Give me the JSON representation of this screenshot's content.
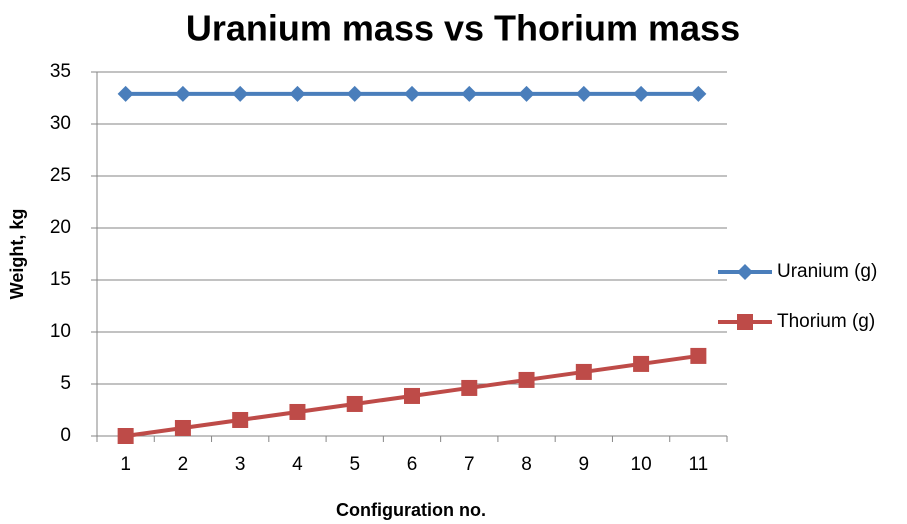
{
  "chart_data": {
    "type": "line",
    "title": "Uranium mass vs Thorium mass",
    "x_label": "Configuration no.",
    "y_label": "Weight, kg",
    "categories": [
      "1",
      "2",
      "3",
      "4",
      "5",
      "6",
      "7",
      "8",
      "9",
      "10",
      "11"
    ],
    "series": [
      {
        "name": "Uranium (g)",
        "color": "#4a7ebb",
        "marker": "diamond",
        "values": [
          32.9,
          32.9,
          32.9,
          32.9,
          32.9,
          32.9,
          32.9,
          32.9,
          32.9,
          32.9,
          32.9
        ]
      },
      {
        "name": "Thorium (g)",
        "color": "#be4b48",
        "marker": "square",
        "values": [
          0,
          0.77,
          1.54,
          2.31,
          3.08,
          3.85,
          4.62,
          5.39,
          6.16,
          6.93,
          7.7
        ]
      }
    ],
    "ylim": [
      0,
      35
    ],
    "yticks": [
      0,
      5,
      10,
      15,
      20,
      25,
      30,
      35
    ],
    "grid": true,
    "legend": "right"
  }
}
